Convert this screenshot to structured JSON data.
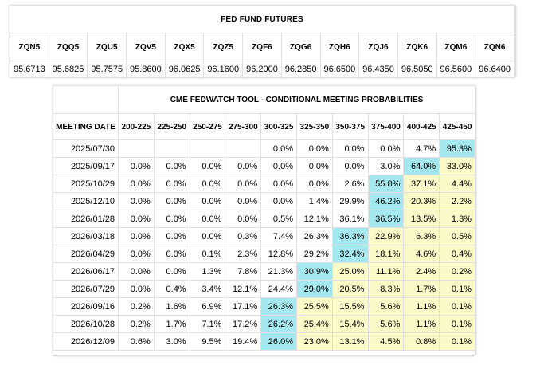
{
  "futures": {
    "title": "FED FUND FUTURES",
    "codes": [
      "ZQN5",
      "ZQQ5",
      "ZQU5",
      "ZQV5",
      "ZQX5",
      "ZQZ5",
      "ZQF6",
      "ZQG6",
      "ZQH6",
      "ZQJ6",
      "ZQK6",
      "ZQM6",
      "ZQN6"
    ],
    "prices": [
      "95.6713",
      "95.6825",
      "95.7575",
      "95.8600",
      "96.0625",
      "96.1600",
      "96.2000",
      "96.2850",
      "96.6500",
      "96.4350",
      "96.5050",
      "96.5600",
      "96.6400"
    ]
  },
  "probabilities": {
    "title": "CME FEDWATCH TOOL - CONDITIONAL MEETING PROBABILITIES",
    "date_header": "MEETING DATE",
    "ranges": [
      "200-225",
      "225-250",
      "250-275",
      "275-300",
      "300-325",
      "325-350",
      "350-375",
      "375-400",
      "400-425",
      "425-450"
    ],
    "colors": {
      "max": "#a6e8f0",
      "above": "#fafac8"
    },
    "rows": [
      {
        "date": "2025/07/30",
        "values": [
          "",
          "",
          "",
          "",
          "0.0%",
          "0.0%",
          "0.0%",
          "0.0%",
          "4.7%",
          "95.3%"
        ],
        "max": 9
      },
      {
        "date": "2025/09/17",
        "values": [
          "0.0%",
          "0.0%",
          "0.0%",
          "0.0%",
          "0.0%",
          "0.0%",
          "0.0%",
          "3.0%",
          "64.0%",
          "33.0%"
        ],
        "max": 8
      },
      {
        "date": "2025/10/29",
        "values": [
          "0.0%",
          "0.0%",
          "0.0%",
          "0.0%",
          "0.0%",
          "0.0%",
          "2.6%",
          "55.8%",
          "37.1%",
          "4.4%"
        ],
        "max": 7
      },
      {
        "date": "2025/12/10",
        "values": [
          "0.0%",
          "0.0%",
          "0.0%",
          "0.0%",
          "0.0%",
          "1.4%",
          "29.9%",
          "46.2%",
          "20.3%",
          "2.2%"
        ],
        "max": 7
      },
      {
        "date": "2026/01/28",
        "values": [
          "0.0%",
          "0.0%",
          "0.0%",
          "0.0%",
          "0.5%",
          "12.1%",
          "36.1%",
          "36.5%",
          "13.5%",
          "1.3%"
        ],
        "max": 7
      },
      {
        "date": "2026/03/18",
        "values": [
          "0.0%",
          "0.0%",
          "0.0%",
          "0.3%",
          "7.4%",
          "26.3%",
          "36.3%",
          "22.9%",
          "6.3%",
          "0.5%"
        ],
        "max": 6
      },
      {
        "date": "2026/04/29",
        "values": [
          "0.0%",
          "0.0%",
          "0.1%",
          "2.3%",
          "12.8%",
          "29.2%",
          "32.4%",
          "18.1%",
          "4.6%",
          "0.4%"
        ],
        "max": 6
      },
      {
        "date": "2026/06/17",
        "values": [
          "0.0%",
          "0.0%",
          "1.3%",
          "7.8%",
          "21.3%",
          "30.9%",
          "25.0%",
          "11.1%",
          "2.4%",
          "0.2%"
        ],
        "max": 5
      },
      {
        "date": "2026/07/29",
        "values": [
          "0.0%",
          "0.4%",
          "3.4%",
          "12.1%",
          "24.4%",
          "29.0%",
          "20.5%",
          "8.3%",
          "1.7%",
          "0.1%"
        ],
        "max": 5
      },
      {
        "date": "2026/09/16",
        "values": [
          "0.2%",
          "1.6%",
          "6.9%",
          "17.1%",
          "26.3%",
          "25.5%",
          "15.5%",
          "5.6%",
          "1.1%",
          "0.1%"
        ],
        "max": 4
      },
      {
        "date": "2026/10/28",
        "values": [
          "0.2%",
          "1.7%",
          "7.1%",
          "17.2%",
          "26.2%",
          "25.4%",
          "15.4%",
          "5.6%",
          "1.1%",
          "0.1%"
        ],
        "max": 4
      },
      {
        "date": "2026/12/09",
        "values": [
          "0.6%",
          "3.0%",
          "9.5%",
          "19.4%",
          "26.0%",
          "23.0%",
          "13.1%",
          "4.5%",
          "0.8%",
          "0.1%"
        ],
        "max": 4
      }
    ]
  }
}
